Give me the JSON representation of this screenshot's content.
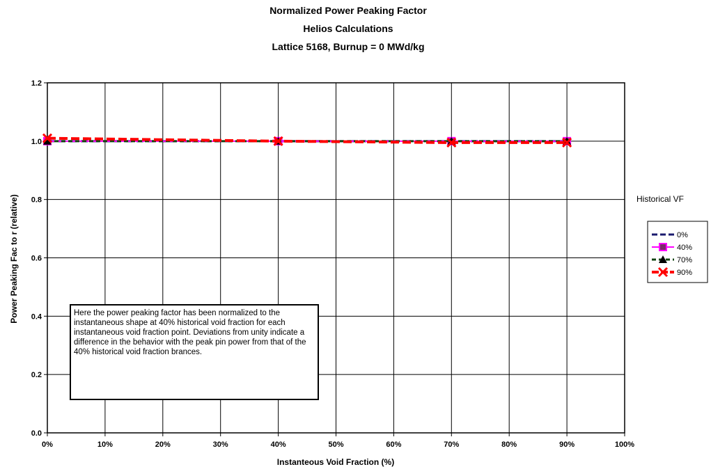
{
  "chart_data": {
    "type": "line",
    "title_lines": [
      "Normalized Power Peaking Factor",
      "Helios Calculations",
      "Lattice 5168, Burnup = 0 MWd/kg"
    ],
    "xlabel": "Instanteous Void Fraction (%)",
    "ylabel": "Power Peaking Fac to r (relative)",
    "xlim": [
      0,
      100
    ],
    "ylim": [
      0,
      1.2
    ],
    "x_ticks": [
      0,
      10,
      20,
      30,
      40,
      50,
      60,
      70,
      80,
      90,
      100
    ],
    "x_tick_labels": [
      "0%",
      "10%",
      "20%",
      "30%",
      "40%",
      "50%",
      "60%",
      "70%",
      "80%",
      "90%",
      "100%"
    ],
    "y_ticks": [
      0,
      0.2,
      0.4,
      0.6,
      0.8,
      1.0,
      1.2
    ],
    "y_tick_labels": [
      "0.0",
      "0.2",
      "0.4",
      "0.6",
      "0.8",
      "1.0",
      "1.2"
    ],
    "grid": true,
    "legend_title": "Historical VF",
    "legend_position": "right",
    "x": [
      0,
      40,
      70,
      90
    ],
    "series": [
      {
        "name": "0%",
        "values": [
          1.0,
          1.0,
          1.0,
          1.0
        ],
        "color": "#1a1a6e",
        "dash": "10,6",
        "marker": "none"
      },
      {
        "name": "40%",
        "values": [
          1.0,
          1.0,
          1.0,
          1.0
        ],
        "color": "#ff00ff",
        "dash": "",
        "marker": "square"
      },
      {
        "name": "70%",
        "values": [
          1.0,
          1.0,
          1.0,
          1.0
        ],
        "color": "#114411",
        "dash": "6,4",
        "marker": "triangle"
      },
      {
        "name": "90%",
        "values": [
          1.01,
          1.0,
          0.995,
          0.995
        ],
        "color": "#ff0000",
        "dash": "12,5",
        "marker": "x"
      }
    ],
    "annotation": "Here the power peaking factor has been normalized to the instantaneous shape at 40% historical void fraction for each instantaneous void fraction point. Deviations from unity indicate a difference in the behavior with the peak pin power from that of the 40% historical void fraction brances."
  }
}
